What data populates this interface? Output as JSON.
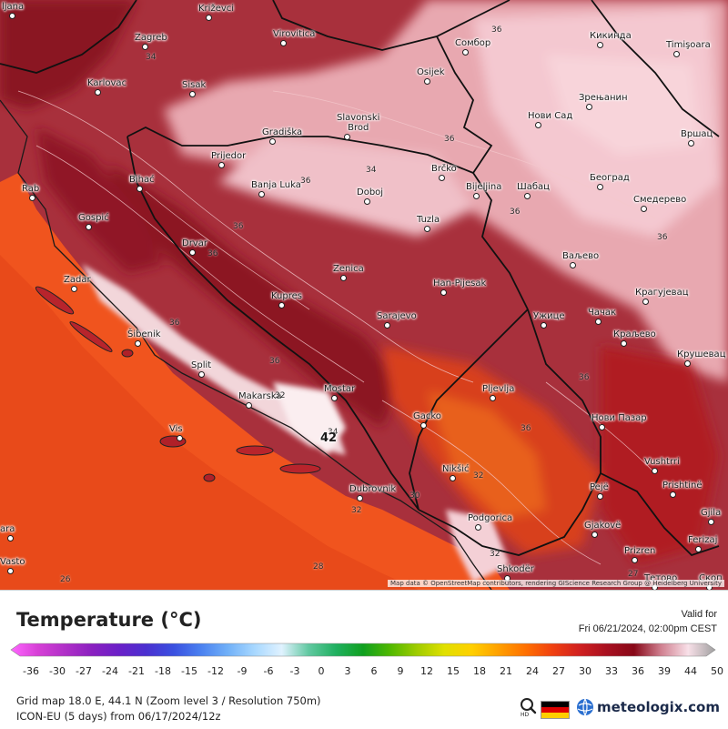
{
  "map": {
    "attribution": "Map data © OpenStreetMap contributors, rendering GIScience Research Group @ Heidelberg University",
    "cities": [
      {
        "name": "Ljubljana",
        "display": "ljana"
      },
      {
        "name": "Krizevci",
        "display": "Križevci"
      },
      {
        "name": "Zagreb",
        "display": "Zagreb"
      },
      {
        "name": "Virovitica",
        "display": "Virovitica"
      },
      {
        "name": "Sombor",
        "display": "Сомбор"
      },
      {
        "name": "Kikinda",
        "display": "Кикинда"
      },
      {
        "name": "Timisoara",
        "display": "Timişoara"
      },
      {
        "name": "Karlovac",
        "display": "Karlovac"
      },
      {
        "name": "Sisak",
        "display": "Sisak"
      },
      {
        "name": "Osijek",
        "display": "Osijek"
      },
      {
        "name": "Zrenjanin",
        "display": "Зрењанин"
      },
      {
        "name": "Slavonski Brod",
        "display": "Slavonski\nBrod"
      },
      {
        "name": "Novi Sad",
        "display": "Нови Сад"
      },
      {
        "name": "Gradiska",
        "display": "Gradiška"
      },
      {
        "name": "Vrsac",
        "display": "Вршац"
      },
      {
        "name": "Prijedor",
        "display": "Prijedor"
      },
      {
        "name": "Brcko",
        "display": "Brčko"
      },
      {
        "name": "Bihac",
        "display": "Bihać"
      },
      {
        "name": "Banja Luka",
        "display": "Banja Luka"
      },
      {
        "name": "Doboj",
        "display": "Doboj"
      },
      {
        "name": "Bijeljina",
        "display": "Bijeljina"
      },
      {
        "name": "Sabac",
        "display": "Шабац"
      },
      {
        "name": "Beograd",
        "display": "Београд"
      },
      {
        "name": "Smederevo",
        "display": "Смедерево"
      },
      {
        "name": "Rab",
        "display": "Rab"
      },
      {
        "name": "Gospic",
        "display": "Gospić"
      },
      {
        "name": "Tuzla",
        "display": "Tuzla"
      },
      {
        "name": "Drvar",
        "display": "Drvar"
      },
      {
        "name": "Valjevo",
        "display": "Ваљево"
      },
      {
        "name": "Zadar",
        "display": "Zadar"
      },
      {
        "name": "Zenica",
        "display": "Zenica"
      },
      {
        "name": "Han Pijesak",
        "display": "Han-Pijesak"
      },
      {
        "name": "Kupres",
        "display": "Kupres"
      },
      {
        "name": "Kragujevac",
        "display": "Крагујевац"
      },
      {
        "name": "Cacak",
        "display": "Чачак"
      },
      {
        "name": "Sarajevo",
        "display": "Sarajevo"
      },
      {
        "name": "Uzice",
        "display": "Ужице"
      },
      {
        "name": "Sibenik",
        "display": "Šibenik"
      },
      {
        "name": "Kraljevo",
        "display": "Краљево"
      },
      {
        "name": "Krusevac",
        "display": "Крушевац"
      },
      {
        "name": "Split",
        "display": "Split"
      },
      {
        "name": "Mostar",
        "display": "Mostar"
      },
      {
        "name": "Pljevlja",
        "display": "Pljevlja"
      },
      {
        "name": "Makarska",
        "display": "Makarska"
      },
      {
        "name": "Gacko",
        "display": "Gacko"
      },
      {
        "name": "Novi Pazar",
        "display": "Нови Пазар"
      },
      {
        "name": "Vis",
        "display": "Vis"
      },
      {
        "name": "Vushtrri",
        "display": "Vushtrri"
      },
      {
        "name": "Niksic",
        "display": "Nikšić"
      },
      {
        "name": "Prishtine",
        "display": "Prishtinë"
      },
      {
        "name": "Dubrovnik",
        "display": "Dubrovnik"
      },
      {
        "name": "Peje",
        "display": "Pejë"
      },
      {
        "name": "Gjilan",
        "display": "Gjila"
      },
      {
        "name": "Podgorica",
        "display": "Podgorica"
      },
      {
        "name": "Gjakove",
        "display": "Gjakovë"
      },
      {
        "name": "Ferizaj",
        "display": "Ferizaj"
      },
      {
        "name": "Prizren",
        "display": "Prizren"
      },
      {
        "name": "Vasto",
        "display": "Vasto"
      },
      {
        "name": "Shkoder",
        "display": "Shkodër"
      },
      {
        "name": "Tetovo",
        "display": "Тетово"
      },
      {
        "name": "Skopje",
        "display": "Скоп"
      },
      {
        "name": "Ara",
        "display": "ara"
      }
    ],
    "iso_labels": [
      "34",
      "36",
      "36",
      "36",
      "34",
      "36",
      "36",
      "36",
      "36",
      "36",
      "36",
      "36",
      "36",
      "34",
      "32",
      "32",
      "42",
      "32",
      "30",
      "32",
      "26",
      "28",
      "27"
    ]
  },
  "legend": {
    "title": "Temperature (°C)",
    "valid_label": "Valid for",
    "valid_time": "Fri 06/21/2024, 02:00pm CEST",
    "ticks": [
      "-36",
      "-30",
      "-27",
      "-24",
      "-21",
      "-18",
      "-15",
      "-12",
      "-9",
      "-6",
      "-3",
      "0",
      "3",
      "6",
      "9",
      "12",
      "15",
      "18",
      "21",
      "24",
      "27",
      "30",
      "33",
      "36",
      "39",
      "44",
      "50"
    ],
    "stops": [
      "#ff66ff",
      "#d640d6",
      "#b030c8",
      "#8a20c0",
      "#6a20c8",
      "#4a30d0",
      "#3a50e0",
      "#4a80f0",
      "#70b0f8",
      "#a8d8ff",
      "#e0f2ff",
      "#60c8a0",
      "#20b060",
      "#10a020",
      "#50b800",
      "#a0cc00",
      "#e0e000",
      "#ffd000",
      "#ffa000",
      "#ff7000",
      "#f04010",
      "#d02020",
      "#a81020",
      "#880818",
      "#d08090",
      "#f8e0e8",
      "#a0a0a0"
    ]
  },
  "meta": {
    "line1": "Grid map 18.0 E, 44.1 N (Zoom level 3 / Resolution 750m)",
    "line2": "ICON-EU (5 days) from 06/17/2024/12z",
    "hd_label": "HD",
    "brand": "meteologix.com",
    "flag_colors": [
      "#000000",
      "#dd0000",
      "#ffce00"
    ]
  }
}
